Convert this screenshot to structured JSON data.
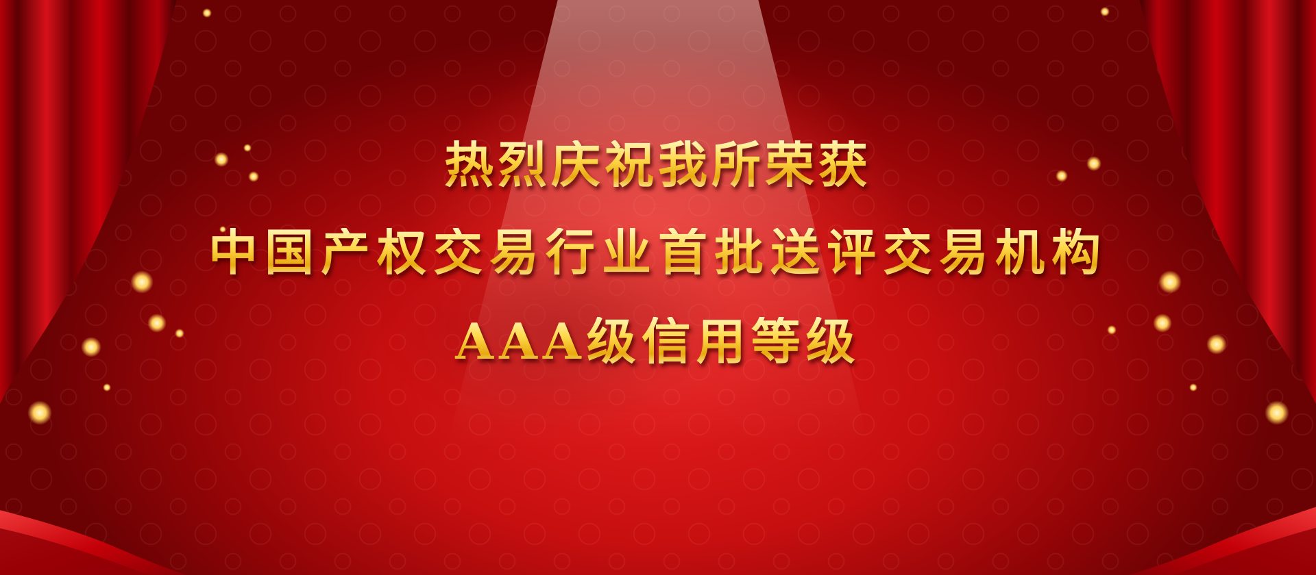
{
  "banner": {
    "line1": "热烈庆祝我所荣获",
    "line2": "中国产权交易行业首批送评交易机构",
    "line3": "AAA级信用等级"
  },
  "colors": {
    "background": "#d7141a",
    "text_gold": "#ffd75a",
    "curtain_red": "#b40006"
  }
}
